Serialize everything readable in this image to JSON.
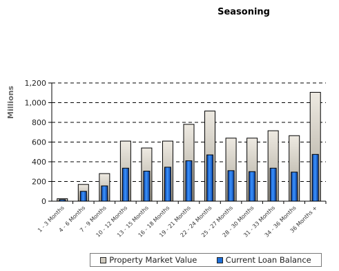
{
  "chart_data": {
    "type": "bar",
    "title": "Seasoning",
    "ylabel": "Millions",
    "xlabel": "",
    "ylim": [
      0,
      1200
    ],
    "yticks": [
      "0",
      "200",
      "400",
      "600",
      "800",
      "1,000",
      "1,200"
    ],
    "categories": [
      "1 - 3 Months",
      "4 - 6 Months",
      "7 - 9 Months",
      "10 - 12 Months",
      "13 - 15 Months",
      "16 - 18 Months",
      "19 - 21 Months",
      "22 - 24 Months",
      "25 - 27 Months",
      "28 - 30 Months",
      "31 - 33 Months",
      "34 - 36 Months",
      "36 Months +"
    ],
    "series": [
      {
        "name": "Property Market Value",
        "color": "#cfcabe",
        "values": [
          25,
          170,
          280,
          610,
          540,
          610,
          780,
          915,
          640,
          640,
          715,
          665,
          1105
        ]
      },
      {
        "name": "Current Loan Balance",
        "color": "#1e6fd9",
        "values": [
          15,
          100,
          155,
          335,
          305,
          345,
          410,
          470,
          310,
          300,
          335,
          295,
          475
        ]
      }
    ],
    "grid": true,
    "legend_position": "bottom"
  }
}
